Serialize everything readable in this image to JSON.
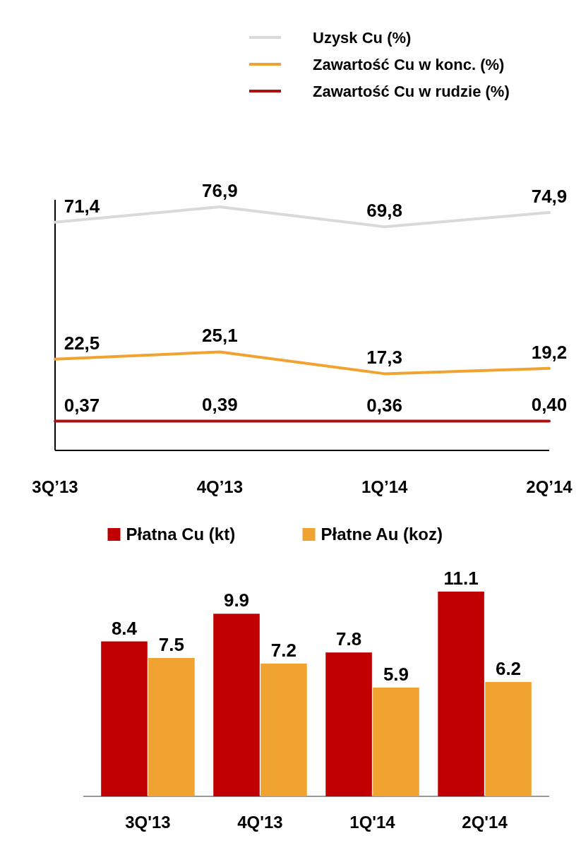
{
  "chart_data": [
    {
      "type": "line",
      "categories": [
        "3Q’13",
        "4Q’13",
        "1Q’14",
        "2Q’14"
      ],
      "legend": "top right",
      "marker": "none",
      "series": [
        {
          "name": "Uzysk Cu (%)",
          "color": "#d9d9d9",
          "values": [
            71.4,
            76.9,
            69.8,
            74.9
          ],
          "value_labels": [
            "71,4",
            "76,9",
            "69,8",
            "74,9"
          ]
        },
        {
          "name": "Zawartość Cu w konc. (%)",
          "color": "#f0a330",
          "values": [
            22.5,
            25.1,
            17.3,
            19.2
          ],
          "value_labels": [
            "22,5",
            "25,1",
            "17,3",
            "19,2"
          ]
        },
        {
          "name": "Zawartość Cu  w rudzie (%)",
          "color": "#b01010",
          "values": [
            0.37,
            0.39,
            0.36,
            0.4
          ],
          "value_labels": [
            "0,37",
            "0,39",
            "0,36",
            "0,40"
          ]
        }
      ]
    },
    {
      "type": "bar",
      "categories": [
        "3Q'13",
        "4Q'13",
        "1Q'14",
        "2Q'14"
      ],
      "legend": "top",
      "data_labels": true,
      "relative": false,
      "series": [
        {
          "name": "Płatna Cu (kt)",
          "color": "#c00000",
          "values": [
            8.4,
            9.9,
            7.8,
            11.1
          ]
        },
        {
          "name": "Płatne Au (koz)",
          "color": "#f0a330",
          "values": [
            7.5,
            7.2,
            5.9,
            6.2
          ]
        }
      ]
    }
  ]
}
